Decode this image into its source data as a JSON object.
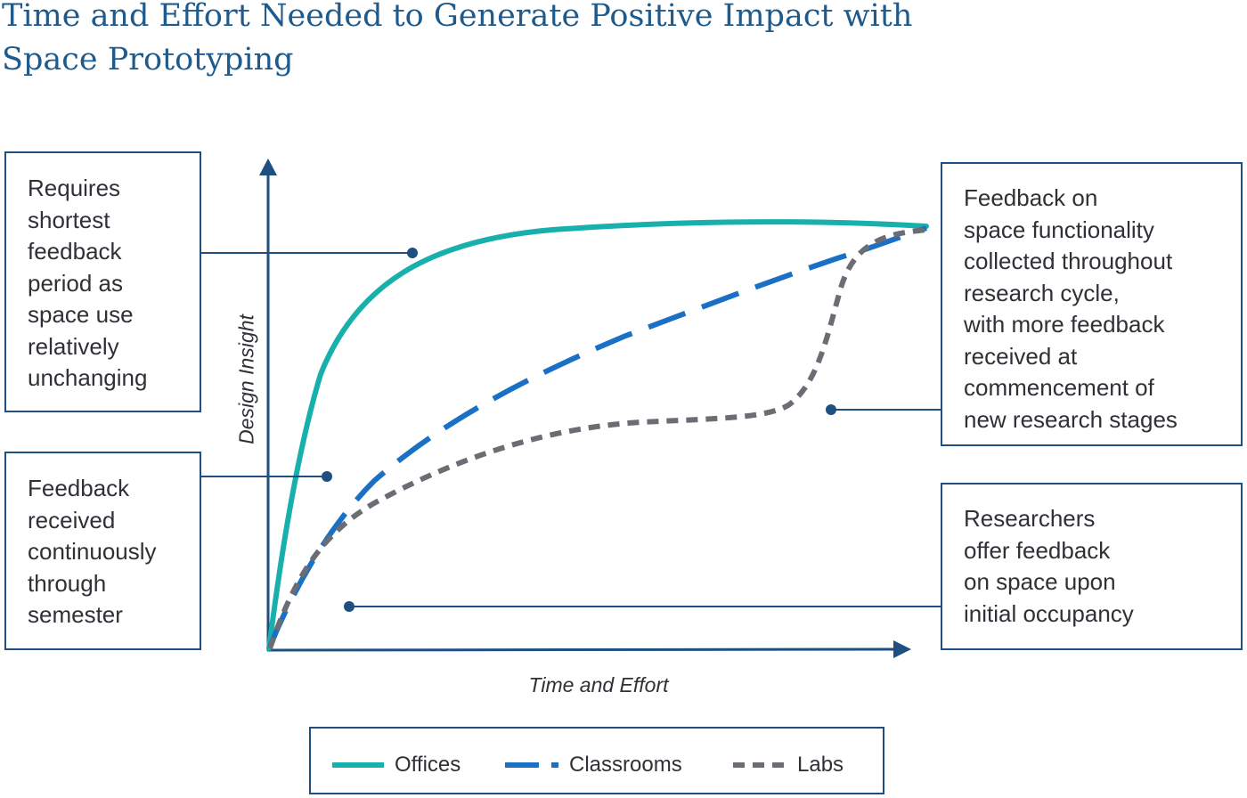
{
  "title": {
    "line1": "Time and Effort Needed to Generate Positive Impact with",
    "line2": "Space Prototyping"
  },
  "axes": {
    "ylabel": "Design Insight",
    "xlabel": "Time and Effort"
  },
  "callouts": {
    "offices": [
      "Requires",
      "shortest",
      "feedback",
      "period as",
      "space use",
      "relatively",
      "unchanging"
    ],
    "classrooms": [
      "Feedback",
      "received",
      "continuously",
      "through",
      "semester"
    ],
    "labs_top": [
      "Feedback on",
      "space functionality",
      "collected throughout",
      "research cycle,",
      "with more feedback",
      "received at",
      "commencement of",
      "new research stages"
    ],
    "labs_bottom": [
      "Researchers",
      "offer feedback",
      "on space upon",
      "initial occupancy"
    ]
  },
  "legend": {
    "items": [
      {
        "label": "Offices",
        "color": "#17b0ad",
        "style": "solid"
      },
      {
        "label": "Classrooms",
        "color": "#1a70c4",
        "style": "dashed"
      },
      {
        "label": "Labs",
        "color": "#6b6d75",
        "style": "dashed"
      }
    ]
  },
  "colors": {
    "axis": "#1e4f80",
    "connector": "#1e4f80",
    "title": "#1f5a8c"
  }
}
